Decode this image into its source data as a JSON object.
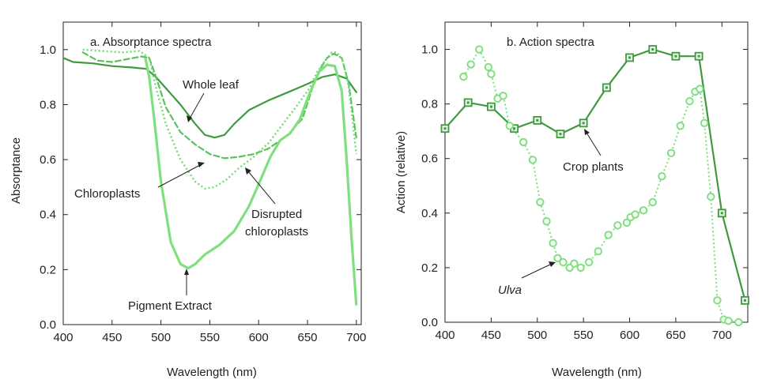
{
  "chart_data": [
    {
      "type": "line",
      "title": "a. Absorptance spectra",
      "xlabel": "Wavelength (nm)",
      "ylabel": "Absorptance",
      "xlim": [
        400,
        705
      ],
      "ylim": [
        0,
        1.1
      ],
      "xticks": [
        400,
        450,
        500,
        550,
        600,
        650,
        700
      ],
      "yticks": [
        0.0,
        0.2,
        0.4,
        0.6,
        0.8,
        1.0
      ],
      "xtick_labels": [
        "400",
        "450",
        "500",
        "550",
        "600",
        "650",
        "700"
      ],
      "ytick_labels": [
        "0.0",
        "0.2",
        "0.4",
        "0.6",
        "0.8",
        "1.0"
      ],
      "grid": false,
      "series": [
        {
          "name": "Whole leaf",
          "style": "solid",
          "color": "#3f9a3f",
          "width": 2.2,
          "x": [
            400,
            410,
            430,
            450,
            470,
            485,
            495,
            505,
            520,
            535,
            545,
            555,
            565,
            575,
            590,
            610,
            630,
            650,
            665,
            678,
            690,
            700
          ],
          "y": [
            0.97,
            0.955,
            0.95,
            0.94,
            0.935,
            0.93,
            0.9,
            0.86,
            0.8,
            0.73,
            0.69,
            0.68,
            0.69,
            0.73,
            0.78,
            0.815,
            0.845,
            0.875,
            0.9,
            0.91,
            0.895,
            0.845
          ]
        },
        {
          "name": "Chloroplasts",
          "style": "dashed",
          "color": "#5cc05c",
          "width": 2.2,
          "x": [
            420,
            435,
            450,
            465,
            480,
            488,
            495,
            505,
            520,
            535,
            550,
            565,
            580,
            595,
            610,
            630,
            645,
            655,
            663,
            670,
            677,
            685,
            692,
            700
          ],
          "y": [
            0.99,
            0.96,
            0.955,
            0.965,
            0.975,
            0.97,
            0.9,
            0.79,
            0.7,
            0.655,
            0.62,
            0.605,
            0.61,
            0.62,
            0.64,
            0.69,
            0.75,
            0.86,
            0.93,
            0.97,
            0.985,
            0.97,
            0.88,
            0.68
          ]
        },
        {
          "name": "Disrupted chloroplasts",
          "style": "dotted",
          "color": "#6fdc6f",
          "width": 2.4,
          "x": [
            420,
            440,
            460,
            478,
            488,
            495,
            505,
            520,
            535,
            545,
            555,
            568,
            580,
            595,
            610,
            625,
            640,
            652,
            660,
            668,
            675,
            680,
            686,
            692,
            700
          ],
          "y": [
            1.0,
            0.995,
            0.99,
            0.995,
            0.97,
            0.86,
            0.73,
            0.6,
            0.52,
            0.495,
            0.5,
            0.53,
            0.57,
            0.61,
            0.66,
            0.73,
            0.8,
            0.86,
            0.92,
            0.96,
            0.99,
            0.99,
            0.96,
            0.87,
            0.62
          ]
        },
        {
          "name": "Pigment Extract",
          "style": "solid",
          "color": "#7fe07f",
          "width": 3.2,
          "x": [
            484,
            488,
            493,
            500,
            510,
            520,
            528,
            535,
            545,
            560,
            575,
            590,
            600,
            612,
            622,
            632,
            642,
            652,
            662,
            670,
            678,
            685,
            690,
            695,
            700
          ],
          "y": [
            0.97,
            0.9,
            0.75,
            0.52,
            0.3,
            0.22,
            0.205,
            0.22,
            0.255,
            0.29,
            0.34,
            0.43,
            0.51,
            0.61,
            0.67,
            0.695,
            0.745,
            0.84,
            0.92,
            0.945,
            0.94,
            0.85,
            0.6,
            0.32,
            0.07
          ]
        }
      ],
      "annotations": [
        {
          "text": "Whole leaf"
        },
        {
          "text": "Chloroplasts"
        },
        {
          "text": "Disrupted"
        },
        {
          "text": "chloroplasts"
        },
        {
          "text": "Pigment Extract"
        }
      ]
    },
    {
      "type": "line",
      "title": "b. Action spectra",
      "xlabel": "Wavelength (nm)",
      "ylabel": "Action (relative)",
      "xlim": [
        400,
        728
      ],
      "ylim": [
        0,
        1.1
      ],
      "xticks": [
        400,
        450,
        500,
        550,
        600,
        650,
        700
      ],
      "yticks": [
        0.0,
        0.2,
        0.4,
        0.6,
        0.8,
        1.0
      ],
      "xtick_labels": [
        "400",
        "450",
        "500",
        "550",
        "600",
        "650",
        "700"
      ],
      "ytick_labels": [
        "0.0",
        "0.2",
        "0.4",
        "0.6",
        "0.8",
        "1.0"
      ],
      "grid": false,
      "series": [
        {
          "name": "Crop plants",
          "style": "solid",
          "marker": "square",
          "color": "#3f9a3f",
          "width": 2.2,
          "x": [
            400,
            425,
            450,
            475,
            500,
            525,
            550,
            575,
            600,
            625,
            650,
            675,
            700,
            725
          ],
          "y": [
            0.71,
            0.805,
            0.79,
            0.71,
            0.74,
            0.69,
            0.73,
            0.86,
            0.97,
            1.0,
            0.975,
            0.975,
            0.4,
            0.08
          ]
        },
        {
          "name": "Ulva",
          "style": "dotted",
          "marker": "circle",
          "color": "#7fe07f",
          "width": 2.0,
          "x": [
            420,
            428,
            437,
            447,
            450,
            457,
            463,
            470,
            485,
            495,
            503,
            510,
            517,
            522,
            528,
            535,
            540,
            547,
            556,
            566,
            577,
            587,
            597,
            601,
            606,
            615,
            625,
            635,
            645,
            655,
            665,
            671,
            676,
            681,
            688,
            695,
            702,
            707,
            718
          ],
          "y": [
            0.9,
            0.945,
            1.0,
            0.935,
            0.91,
            0.82,
            0.83,
            0.72,
            0.66,
            0.595,
            0.44,
            0.37,
            0.29,
            0.235,
            0.22,
            0.2,
            0.215,
            0.2,
            0.22,
            0.26,
            0.32,
            0.355,
            0.365,
            0.385,
            0.395,
            0.41,
            0.44,
            0.535,
            0.62,
            0.72,
            0.81,
            0.845,
            0.855,
            0.73,
            0.46,
            0.08,
            0.01,
            0.005,
            0.0
          ]
        }
      ],
      "annotations": [
        {
          "text": "Crop plants"
        },
        {
          "text": "Ulva"
        }
      ]
    }
  ]
}
